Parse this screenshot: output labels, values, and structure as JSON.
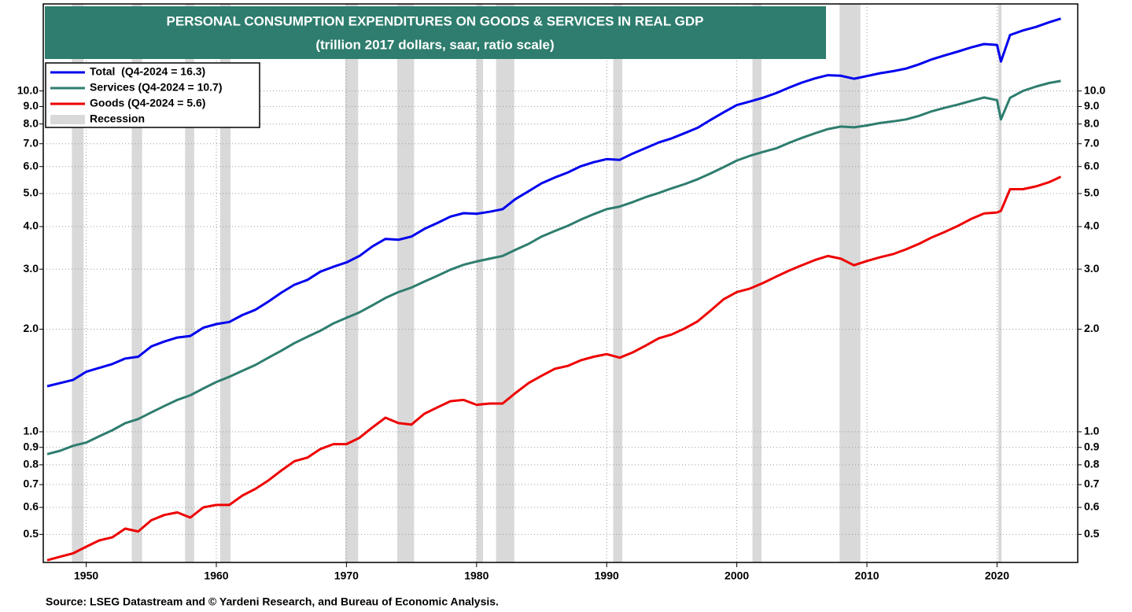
{
  "chart_data": {
    "type": "line",
    "title": "PERSONAL CONSUMPTION EXPENDITURES ON GOODS & SERVICES IN REAL GDP",
    "subtitle": "(trillion 2017 dollars, saar, ratio scale)",
    "source": "Source: LSEG Datastream and © Yardeni Research, and Bureau of Economic Analysis.",
    "log_scale": true,
    "grid": true,
    "legend_position": "upper-left",
    "xlim": [
      1946.7,
      2026.2
    ],
    "xticks": [
      1950,
      1960,
      1970,
      1980,
      1990,
      2000,
      2010,
      2020
    ],
    "ylim": [
      0.4137,
      18
    ],
    "yticks": [
      0.5,
      0.6,
      0.7,
      0.8,
      0.9,
      {
        "value": 1,
        "label": "1.0"
      },
      {
        "value": 2,
        "label": "2.0"
      },
      {
        "value": 3,
        "label": "3.0"
      },
      {
        "value": 4,
        "label": "4.0"
      },
      {
        "value": 5,
        "label": "5.0"
      },
      {
        "value": 6,
        "label": "6.0"
      },
      {
        "value": 7,
        "label": "7.0"
      },
      {
        "value": 8,
        "label": "8.0"
      },
      {
        "value": 9,
        "label": "9.0"
      },
      {
        "value": 10,
        "label": "10.0"
      }
    ],
    "recession_name": "Recession",
    "recession_color": "#d9d9d9",
    "recessions": [
      [
        1948.9,
        1949.8
      ],
      [
        1953.5,
        1954.3
      ],
      [
        1957.6,
        1958.3
      ],
      [
        1960.3,
        1961.1
      ],
      [
        1969.9,
        1970.9
      ],
      [
        1973.9,
        1975.2
      ],
      [
        1980.0,
        1980.5
      ],
      [
        1981.5,
        1982.9
      ],
      [
        1990.5,
        1991.2
      ],
      [
        2001.2,
        2001.9
      ],
      [
        2007.9,
        2009.5
      ],
      [
        2020.1,
        2020.35
      ]
    ],
    "x": [
      1947,
      1948,
      1949,
      1950,
      1951,
      1952,
      1953,
      1954,
      1955,
      1956,
      1957,
      1958,
      1959,
      1960,
      1961,
      1962,
      1963,
      1964,
      1965,
      1966,
      1967,
      1968,
      1969,
      1970,
      1971,
      1972,
      1973,
      1974,
      1975,
      1976,
      1977,
      1978,
      1979,
      1980,
      1981,
      1982,
      1983,
      1984,
      1985,
      1986,
      1987,
      1988,
      1989,
      1990,
      1991,
      1992,
      1993,
      1994,
      1995,
      1996,
      1997,
      1998,
      1999,
      2000,
      2001,
      2002,
      2003,
      2004,
      2005,
      2006,
      2007,
      2008,
      2009,
      2010,
      2011,
      2012,
      2013,
      2014,
      2015,
      2016,
      2017,
      2018,
      2019,
      2020,
      2020.3,
      2021,
      2022,
      2023,
      2024,
      2024.9
    ],
    "series": [
      {
        "name": "Total  (Q4-2024 = 16.3)",
        "color": "#0000ee",
        "values": [
          1.36,
          1.39,
          1.42,
          1.5,
          1.54,
          1.58,
          1.64,
          1.66,
          1.78,
          1.84,
          1.89,
          1.91,
          2.02,
          2.07,
          2.1,
          2.2,
          2.28,
          2.41,
          2.56,
          2.7,
          2.79,
          2.95,
          3.05,
          3.14,
          3.28,
          3.5,
          3.68,
          3.66,
          3.74,
          3.94,
          4.1,
          4.28,
          4.38,
          4.36,
          4.42,
          4.5,
          4.82,
          5.08,
          5.36,
          5.57,
          5.76,
          6.01,
          6.18,
          6.31,
          6.28,
          6.55,
          6.8,
          7.06,
          7.26,
          7.52,
          7.8,
          8.23,
          8.66,
          9.09,
          9.31,
          9.55,
          9.85,
          10.22,
          10.58,
          10.88,
          11.12,
          11.08,
          10.86,
          11.06,
          11.27,
          11.43,
          11.63,
          11.97,
          12.38,
          12.72,
          13.05,
          13.42,
          13.73,
          13.65,
          12.2,
          14.59,
          15.05,
          15.41,
          15.9,
          16.3
        ]
      },
      {
        "name": "Services (Q4-2024 = 10.7)",
        "color": "#2e7d6e",
        "values": [
          0.86,
          0.88,
          0.91,
          0.93,
          0.97,
          1.01,
          1.06,
          1.09,
          1.14,
          1.19,
          1.24,
          1.28,
          1.34,
          1.4,
          1.45,
          1.51,
          1.57,
          1.65,
          1.73,
          1.82,
          1.9,
          1.98,
          2.08,
          2.16,
          2.24,
          2.35,
          2.47,
          2.57,
          2.65,
          2.76,
          2.87,
          2.99,
          3.09,
          3.16,
          3.22,
          3.28,
          3.42,
          3.56,
          3.74,
          3.88,
          4.02,
          4.19,
          4.35,
          4.5,
          4.58,
          4.72,
          4.88,
          5.02,
          5.18,
          5.33,
          5.51,
          5.73,
          5.98,
          6.25,
          6.45,
          6.62,
          6.78,
          7.04,
          7.28,
          7.51,
          7.73,
          7.86,
          7.82,
          7.92,
          8.05,
          8.14,
          8.25,
          8.45,
          8.72,
          8.93,
          9.12,
          9.35,
          9.57,
          9.4,
          8.25,
          9.55,
          10.0,
          10.3,
          10.55,
          10.7
        ]
      },
      {
        "name": "Goods (Q4-2024 = 5.6)",
        "color": "#ee0000",
        "values": [
          0.42,
          0.43,
          0.44,
          0.46,
          0.48,
          0.49,
          0.52,
          0.51,
          0.55,
          0.57,
          0.58,
          0.56,
          0.6,
          0.61,
          0.61,
          0.65,
          0.68,
          0.72,
          0.77,
          0.82,
          0.84,
          0.89,
          0.92,
          0.92,
          0.96,
          1.03,
          1.1,
          1.06,
          1.05,
          1.13,
          1.18,
          1.23,
          1.24,
          1.2,
          1.21,
          1.21,
          1.3,
          1.39,
          1.46,
          1.53,
          1.56,
          1.62,
          1.66,
          1.69,
          1.65,
          1.71,
          1.79,
          1.88,
          1.93,
          2.01,
          2.11,
          2.27,
          2.45,
          2.57,
          2.63,
          2.73,
          2.85,
          2.97,
          3.08,
          3.19,
          3.28,
          3.22,
          3.08,
          3.17,
          3.25,
          3.32,
          3.43,
          3.56,
          3.72,
          3.86,
          4.02,
          4.21,
          4.37,
          4.4,
          4.45,
          5.15,
          5.15,
          5.25,
          5.4,
          5.6
        ]
      }
    ]
  }
}
